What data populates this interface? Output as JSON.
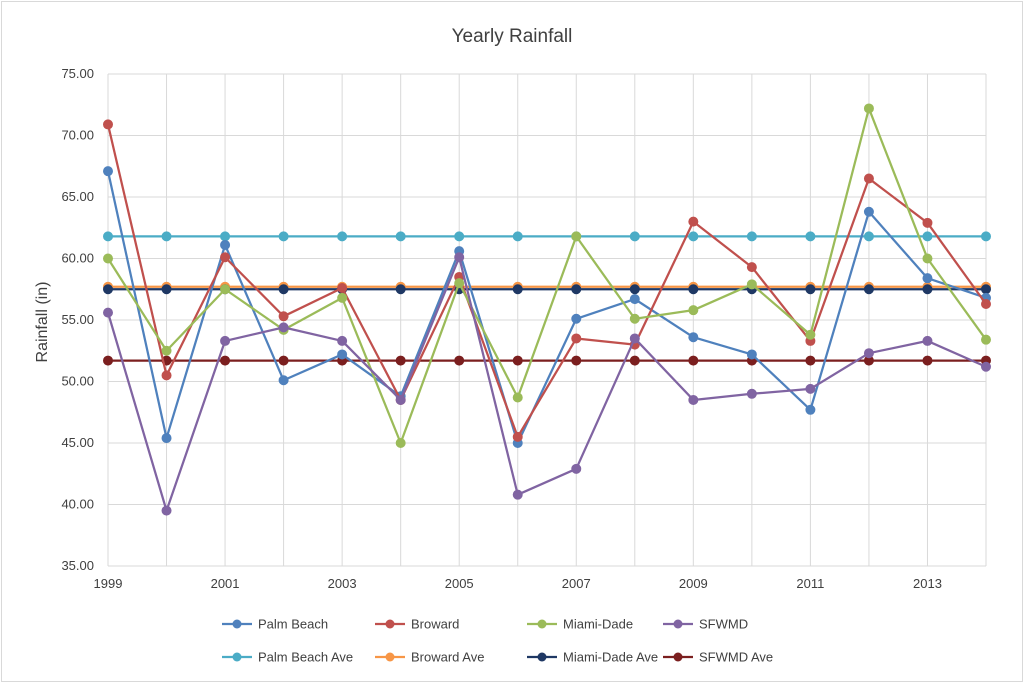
{
  "chart_data": {
    "type": "line",
    "title": "Yearly Rainfall",
    "xlabel": "",
    "ylabel": "Rainfall (in)",
    "x": [
      1999,
      2000,
      2001,
      2002,
      2003,
      2004,
      2005,
      2006,
      2007,
      2008,
      2009,
      2010,
      2011,
      2012,
      2013,
      2014
    ],
    "x_tick_labels": [
      "1999",
      "2001",
      "2003",
      "2005",
      "2007",
      "2009",
      "2011",
      "2013"
    ],
    "x_tick_values": [
      1999,
      2001,
      2003,
      2005,
      2007,
      2009,
      2011,
      2013
    ],
    "xlim": [
      1999,
      2014
    ],
    "ylim": [
      35,
      75
    ],
    "y_ticks": [
      35,
      40,
      45,
      50,
      55,
      60,
      65,
      70,
      75
    ],
    "y_tick_labels": [
      "35.00",
      "40.00",
      "45.00",
      "50.00",
      "55.00",
      "60.00",
      "65.00",
      "70.00",
      "75.00"
    ],
    "grid": true,
    "legend_position": "bottom",
    "series": [
      {
        "name": "Palm Beach",
        "color": "#4f81bd",
        "values": [
          67.1,
          45.4,
          61.1,
          50.1,
          52.2,
          48.8,
          60.6,
          45.0,
          55.1,
          56.7,
          53.6,
          52.2,
          47.7,
          63.8,
          58.4,
          56.8
        ]
      },
      {
        "name": "Broward",
        "color": "#c0504d",
        "values": [
          70.9,
          50.5,
          60.1,
          55.3,
          57.6,
          48.5,
          58.5,
          45.5,
          53.5,
          53.0,
          63.0,
          59.3,
          53.3,
          66.5,
          62.9,
          56.3
        ]
      },
      {
        "name": "Miami-Dade",
        "color": "#9bbb59",
        "values": [
          60.0,
          52.5,
          57.5,
          54.2,
          56.8,
          45.0,
          58.0,
          48.7,
          61.8,
          55.1,
          55.8,
          57.9,
          53.8,
          72.2,
          60.0,
          53.4
        ]
      },
      {
        "name": "SFWMD",
        "color": "#8064a2",
        "values": [
          55.6,
          39.5,
          53.3,
          54.4,
          53.3,
          48.5,
          60.1,
          40.8,
          42.9,
          53.5,
          48.5,
          49.0,
          49.4,
          52.3,
          53.3,
          51.2
        ]
      },
      {
        "name": "Palm Beach Ave",
        "color": "#4bacc6",
        "values": [
          61.8,
          61.8,
          61.8,
          61.8,
          61.8,
          61.8,
          61.8,
          61.8,
          61.8,
          61.8,
          61.8,
          61.8,
          61.8,
          61.8,
          61.8,
          61.8
        ]
      },
      {
        "name": "Broward Ave",
        "color": "#f79646",
        "values": [
          57.7,
          57.7,
          57.7,
          57.7,
          57.7,
          57.7,
          57.7,
          57.7,
          57.7,
          57.7,
          57.7,
          57.7,
          57.7,
          57.7,
          57.7,
          57.7
        ]
      },
      {
        "name": "Miami-Dade Ave",
        "color": "#1f3864",
        "values": [
          57.5,
          57.5,
          57.5,
          57.5,
          57.5,
          57.5,
          57.5,
          57.5,
          57.5,
          57.5,
          57.5,
          57.5,
          57.5,
          57.5,
          57.5,
          57.5
        ]
      },
      {
        "name": "SFWMD Ave",
        "color": "#7b1f1f",
        "values": [
          51.7,
          51.7,
          51.7,
          51.7,
          51.7,
          51.7,
          51.7,
          51.7,
          51.7,
          51.7,
          51.7,
          51.7,
          51.7,
          51.7,
          51.7,
          51.7
        ]
      }
    ]
  }
}
